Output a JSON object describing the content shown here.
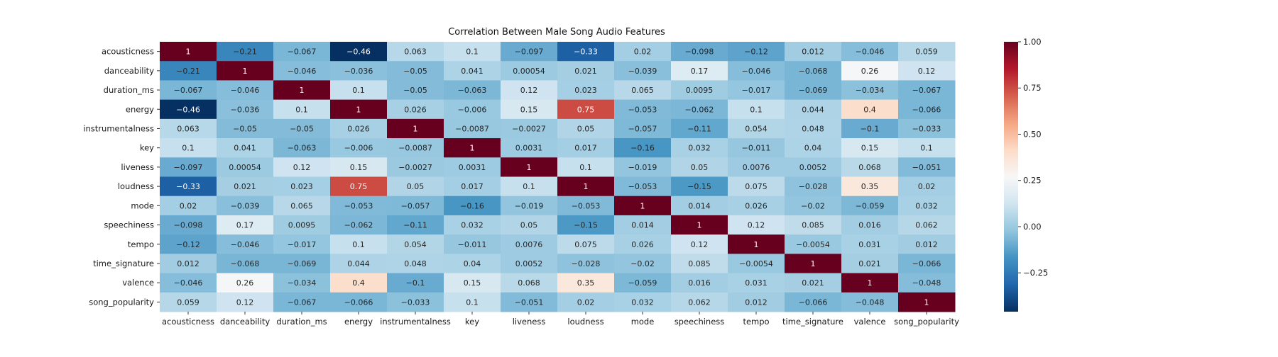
{
  "chart_data": {
    "type": "heatmap",
    "title": "Correlation Between Male Song Audio Features",
    "labels": [
      "acousticness",
      "danceability",
      "duration_ms",
      "energy",
      "instrumentalness",
      "key",
      "liveness",
      "loudness",
      "mode",
      "speechiness",
      "tempo",
      "time_signature",
      "valence",
      "song_popularity"
    ],
    "matrix": [
      [
        1,
        -0.21,
        -0.067,
        -0.46,
        0.063,
        0.1,
        -0.097,
        -0.33,
        0.02,
        -0.098,
        -0.12,
        0.012,
        -0.046,
        0.059
      ],
      [
        -0.21,
        1,
        -0.046,
        -0.036,
        -0.05,
        0.041,
        0.00054,
        0.021,
        -0.039,
        0.17,
        -0.046,
        -0.068,
        0.26,
        0.12
      ],
      [
        -0.067,
        -0.046,
        1,
        0.1,
        -0.05,
        -0.063,
        0.12,
        0.023,
        0.065,
        0.0095,
        -0.017,
        -0.069,
        -0.034,
        -0.067
      ],
      [
        -0.46,
        -0.036,
        0.1,
        1,
        0.026,
        -0.006,
        0.15,
        0.75,
        -0.053,
        -0.062,
        0.1,
        0.044,
        0.4,
        -0.066
      ],
      [
        0.063,
        -0.05,
        -0.05,
        0.026,
        1,
        -0.0087,
        -0.0027,
        0.05,
        -0.057,
        -0.11,
        0.054,
        0.048,
        -0.1,
        -0.033
      ],
      [
        0.1,
        0.041,
        -0.063,
        -0.006,
        -0.0087,
        1,
        0.0031,
        0.017,
        -0.16,
        0.032,
        -0.011,
        0.04,
        0.15,
        0.1
      ],
      [
        -0.097,
        0.00054,
        0.12,
        0.15,
        -0.0027,
        0.0031,
        1,
        0.1,
        -0.019,
        0.05,
        0.0076,
        0.0052,
        0.068,
        -0.051
      ],
      [
        -0.33,
        0.021,
        0.023,
        0.75,
        0.05,
        0.017,
        0.1,
        1,
        -0.053,
        -0.15,
        0.075,
        -0.028,
        0.35,
        0.02
      ],
      [
        0.02,
        -0.039,
        0.065,
        -0.053,
        -0.057,
        -0.16,
        -0.019,
        -0.053,
        1,
        0.014,
        0.026,
        -0.02,
        -0.059,
        0.032
      ],
      [
        -0.098,
        0.17,
        0.0095,
        -0.062,
        -0.11,
        0.032,
        0.05,
        -0.15,
        0.014,
        1,
        0.12,
        0.085,
        0.016,
        0.062
      ],
      [
        -0.12,
        -0.046,
        -0.017,
        0.1,
        0.054,
        -0.011,
        0.0076,
        0.075,
        0.026,
        0.12,
        1,
        -0.0054,
        0.031,
        0.012
      ],
      [
        0.012,
        -0.068,
        -0.069,
        0.044,
        0.048,
        0.04,
        0.0052,
        -0.028,
        -0.02,
        0.085,
        -0.0054,
        1,
        0.021,
        -0.066
      ],
      [
        -0.046,
        0.26,
        -0.034,
        0.4,
        -0.1,
        0.15,
        0.068,
        0.35,
        -0.059,
        0.016,
        0.031,
        0.021,
        1,
        -0.048
      ],
      [
        0.059,
        0.12,
        -0.067,
        -0.066,
        -0.033,
        0.1,
        -0.051,
        0.02,
        0.032,
        0.062,
        0.012,
        -0.066,
        -0.048,
        1
      ]
    ],
    "colormap": "RdBu_r",
    "vmin": -0.46,
    "vmax": 1.0,
    "colorbar_ticks": [
      1.0,
      0.75,
      0.5,
      0.25,
      0.0,
      -0.25
    ],
    "colorbar_tick_labels": [
      "1.00",
      "0.75",
      "0.50",
      "0.25",
      "0.00",
      "−0.25"
    ],
    "annotated": true,
    "grid": false
  }
}
